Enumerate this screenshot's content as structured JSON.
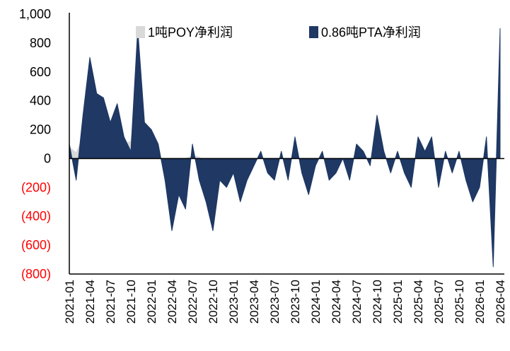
{
  "chart_data": {
    "type": "area",
    "title": "",
    "xlabel": "",
    "ylabel": "",
    "ylim": [
      -800,
      1000
    ],
    "yticks": [
      -800,
      -600,
      -400,
      -200,
      0,
      200,
      400,
      600,
      800,
      1000
    ],
    "ytick_labels": [
      "(800)",
      "(600)",
      "(400)",
      "(200)",
      "0",
      "200",
      "400",
      "600",
      "800",
      "1,000"
    ],
    "negative_tick_color": "#ff0000",
    "positive_tick_color": "#000000",
    "x_start": "2021-01",
    "x_end": "2026-04",
    "xtick_labels": [
      "2021-01",
      "2021-04",
      "2021-07",
      "2021-10",
      "2022-01",
      "2022-04",
      "2022-07",
      "2022-10",
      "2023-01",
      "2023-04",
      "2023-07",
      "2023-10",
      "2024-01",
      "2024-04",
      "2024-07",
      "2024-10",
      "2025-01",
      "2025-04",
      "2025-07",
      "2025-10",
      "2026-01",
      "2026-04"
    ],
    "grid": false,
    "legend_position": "top",
    "series": [
      {
        "name": "1吨POY净利润",
        "style": "area",
        "color": "#d9d9d9",
        "points": [
          [
            "2021-01",
            80
          ],
          [
            "2021-02",
            40
          ],
          [
            "2021-03",
            150
          ],
          [
            "2021-04",
            450
          ],
          [
            "2021-05",
            400
          ],
          [
            "2021-06",
            250
          ],
          [
            "2021-07",
            200
          ],
          [
            "2021-08",
            150
          ],
          [
            "2021-09",
            100
          ],
          [
            "2021-10",
            120
          ],
          [
            "2021-11",
            500
          ],
          [
            "2021-12",
            150
          ],
          [
            "2022-01",
            50
          ],
          [
            "2022-02",
            20
          ],
          [
            "2022-03",
            -30
          ],
          [
            "2022-04",
            -60
          ],
          [
            "2022-05",
            -40
          ],
          [
            "2022-06",
            0
          ],
          [
            "2022-07",
            20
          ],
          [
            "2022-08",
            10
          ],
          [
            "2022-09",
            -30
          ],
          [
            "2022-10",
            -150
          ],
          [
            "2022-11",
            -50
          ],
          [
            "2022-12",
            -20
          ],
          [
            "2023-01",
            -10
          ],
          [
            "2023-02",
            0
          ],
          [
            "2023-06",
            0
          ],
          [
            "2026-04",
            0
          ]
        ]
      },
      {
        "name": "0.86吨PTA净利润",
        "style": "area",
        "color": "#1f3864",
        "points": [
          [
            "2021-01",
            100
          ],
          [
            "2021-02",
            -150
          ],
          [
            "2021-03",
            300
          ],
          [
            "2021-04",
            700
          ],
          [
            "2021-05",
            450
          ],
          [
            "2021-06",
            420
          ],
          [
            "2021-07",
            250
          ],
          [
            "2021-08",
            380
          ],
          [
            "2021-09",
            150
          ],
          [
            "2021-10",
            50
          ],
          [
            "2021-11",
            900
          ],
          [
            "2021-12",
            250
          ],
          [
            "2022-01",
            200
          ],
          [
            "2022-02",
            100
          ],
          [
            "2022-03",
            -150
          ],
          [
            "2022-04",
            -500
          ],
          [
            "2022-05",
            -250
          ],
          [
            "2022-06",
            -350
          ],
          [
            "2022-07",
            100
          ],
          [
            "2022-08",
            -150
          ],
          [
            "2022-09",
            -300
          ],
          [
            "2022-10",
            -500
          ],
          [
            "2022-11",
            -150
          ],
          [
            "2022-12",
            -200
          ],
          [
            "2023-01",
            -100
          ],
          [
            "2023-02",
            -300
          ],
          [
            "2023-03",
            -150
          ],
          [
            "2023-04",
            -50
          ],
          [
            "2023-05",
            50
          ],
          [
            "2023-06",
            -100
          ],
          [
            "2023-07",
            -150
          ],
          [
            "2023-08",
            50
          ],
          [
            "2023-09",
            -150
          ],
          [
            "2023-10",
            150
          ],
          [
            "2023-11",
            -100
          ],
          [
            "2023-12",
            -250
          ],
          [
            "2024-01",
            -50
          ],
          [
            "2024-02",
            50
          ],
          [
            "2024-03",
            -150
          ],
          [
            "2024-04",
            -100
          ],
          [
            "2024-05",
            0
          ],
          [
            "2024-06",
            -150
          ],
          [
            "2024-07",
            100
          ],
          [
            "2024-08",
            50
          ],
          [
            "2024-09",
            -50
          ],
          [
            "2024-10",
            300
          ],
          [
            "2024-11",
            50
          ],
          [
            "2024-12",
            -100
          ],
          [
            "2025-01",
            50
          ],
          [
            "2025-02",
            -100
          ],
          [
            "2025-03",
            -200
          ],
          [
            "2025-04",
            150
          ],
          [
            "2025-05",
            50
          ],
          [
            "2025-06",
            150
          ],
          [
            "2025-07",
            -200
          ],
          [
            "2025-08",
            50
          ],
          [
            "2025-09",
            -100
          ],
          [
            "2025-10",
            50
          ],
          [
            "2025-11",
            -150
          ],
          [
            "2025-12",
            -300
          ],
          [
            "2026-01",
            -200
          ],
          [
            "2026-02",
            150
          ],
          [
            "2026-03",
            -750
          ],
          [
            "2026-04",
            900
          ]
        ]
      }
    ]
  }
}
